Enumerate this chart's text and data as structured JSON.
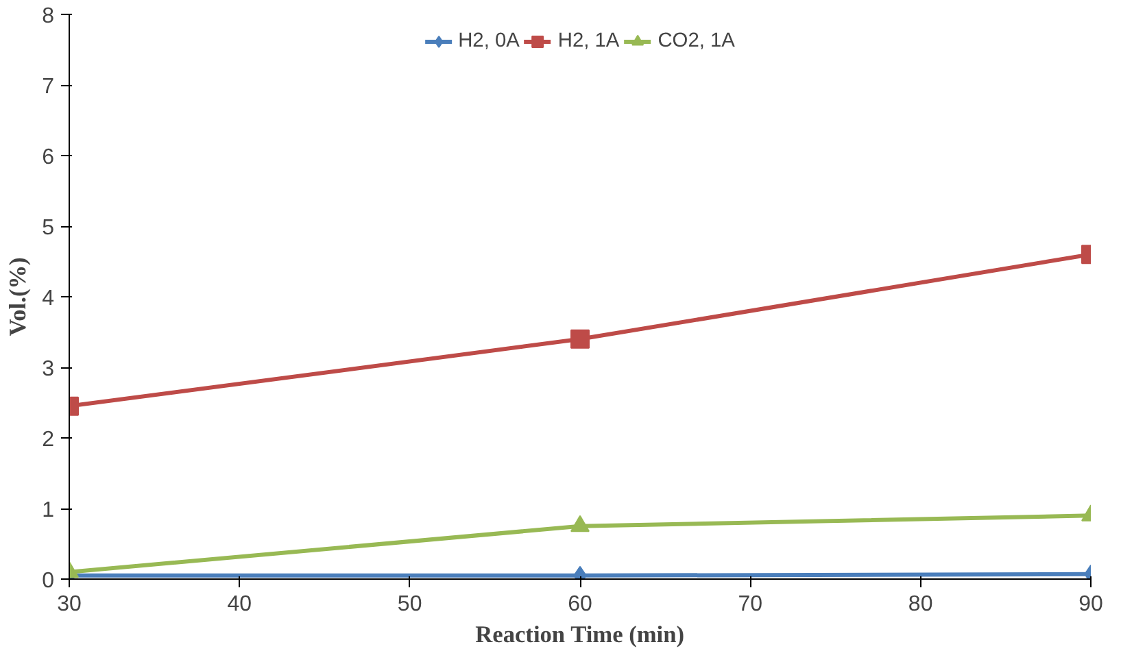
{
  "chart_data": {
    "type": "line",
    "xlabel": "Reaction Time (min)",
    "ylabel": "Vol.(%)",
    "x": [
      30,
      60,
      90
    ],
    "series": [
      {
        "name": "H2, 0A",
        "color": "#4a7ebb",
        "values": [
          0.05,
          0.05,
          0.07
        ],
        "marker": "diamond"
      },
      {
        "name": "H2, 1A",
        "color": "#be4b48",
        "values": [
          2.45,
          3.4,
          4.6
        ],
        "marker": "square"
      },
      {
        "name": "CO2, 1A",
        "color": "#98b954",
        "values": [
          0.1,
          0.75,
          0.9
        ],
        "marker": "triangle"
      }
    ],
    "xlim": [
      30,
      90
    ],
    "xticks": [
      30,
      40,
      50,
      60,
      70,
      80,
      90
    ],
    "ylim": [
      0,
      8
    ],
    "yticks": [
      0,
      1,
      2,
      3,
      4,
      5,
      6,
      7,
      8
    ],
    "grid": false,
    "legend": "top",
    "line_style": "solid"
  }
}
